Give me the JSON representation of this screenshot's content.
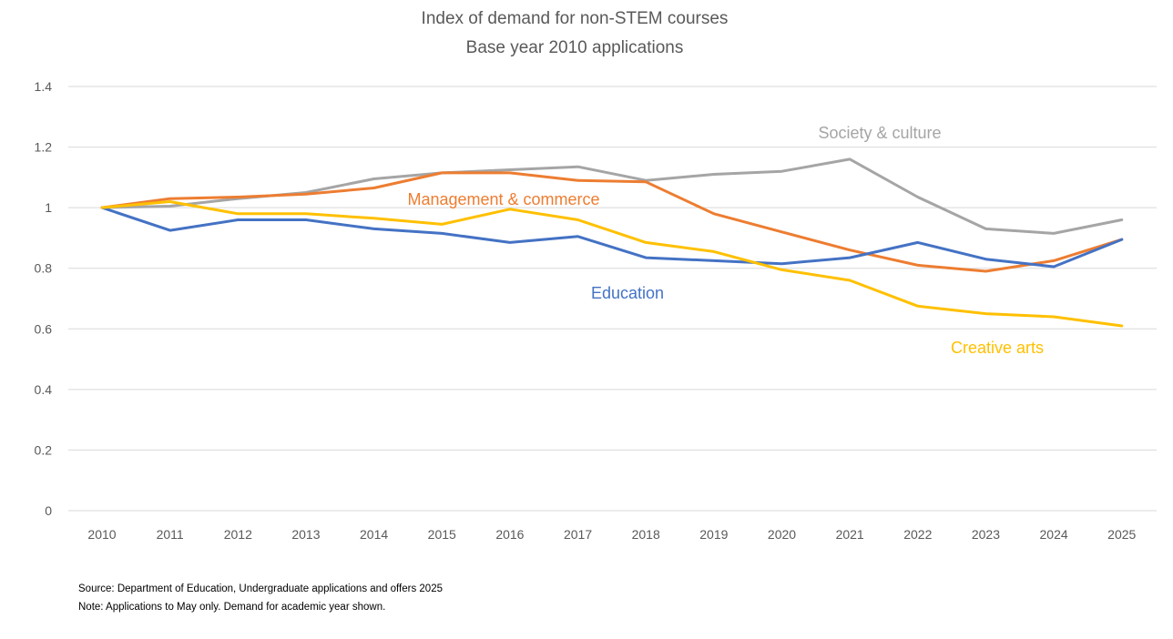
{
  "chart_data": {
    "type": "line",
    "title": "Index of demand for non-STEM courses",
    "subtitle": "Base year 2010 applications",
    "xlabel": "",
    "ylabel": "",
    "categories": [
      "2010",
      "2011",
      "2012",
      "2013",
      "2014",
      "2015",
      "2016",
      "2017",
      "2018",
      "2019",
      "2020",
      "2021",
      "2022",
      "2023",
      "2024",
      "2025"
    ],
    "ylim": [
      0,
      1.4
    ],
    "yticks": [
      0,
      0.2,
      0.4,
      0.6,
      0.8,
      1,
      1.2,
      1.4
    ],
    "ytick_labels": [
      "0",
      "0.2",
      "0.4",
      "0.6",
      "0.8",
      "1",
      "1.2",
      "1.4"
    ],
    "grid": true,
    "legend": "inline labels",
    "series": [
      {
        "name": "Society & culture",
        "color": "#a5a5a5",
        "values": [
          1.0,
          1.005,
          1.03,
          1.05,
          1.095,
          1.115,
          1.125,
          1.135,
          1.09,
          1.11,
          1.12,
          1.16,
          1.035,
          0.93,
          0.915,
          0.96
        ]
      },
      {
        "name": "Management & commerce",
        "color": "#ed7d31",
        "values": [
          1.0,
          1.03,
          1.035,
          1.045,
          1.065,
          1.115,
          1.115,
          1.09,
          1.085,
          0.98,
          0.92,
          0.86,
          0.81,
          0.79,
          0.825,
          0.895
        ]
      },
      {
        "name": "Education",
        "color": "#4472c4",
        "values": [
          1.0,
          0.925,
          0.96,
          0.96,
          0.93,
          0.915,
          0.885,
          0.905,
          0.835,
          0.825,
          0.815,
          0.835,
          0.885,
          0.83,
          0.805,
          0.895
        ]
      },
      {
        "name": "Creative arts",
        "color": "#ffc000",
        "values": [
          1.0,
          1.02,
          0.98,
          0.98,
          0.965,
          0.945,
          0.995,
          0.96,
          0.885,
          0.855,
          0.795,
          0.76,
          0.675,
          0.65,
          0.64,
          0.61
        ]
      }
    ],
    "annotations": [
      "Source: Department of Education, Undergraduate applications and offers 2025",
      "Note: Applications to May only.  Demand for academic year shown."
    ]
  }
}
